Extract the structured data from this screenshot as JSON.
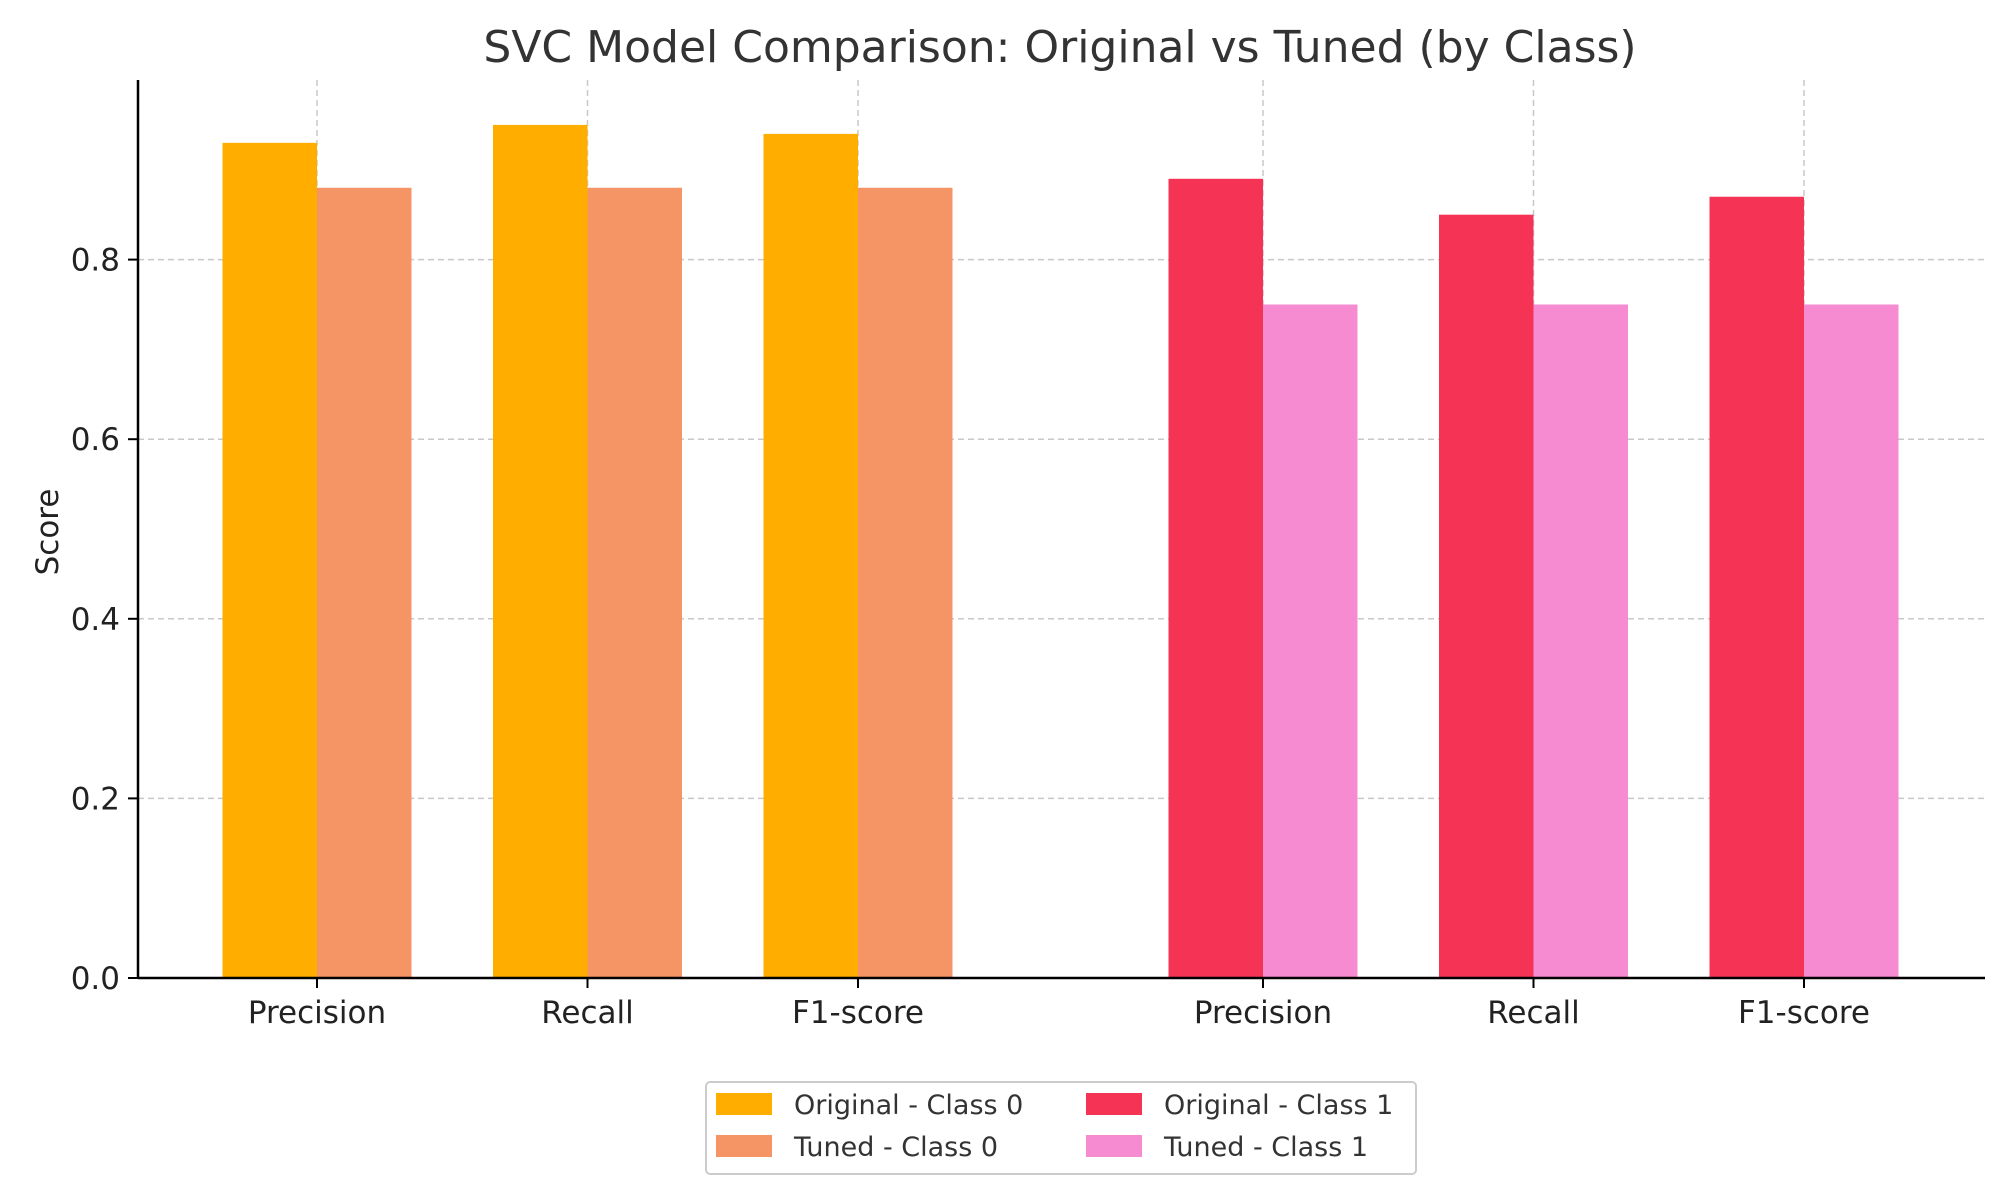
{
  "chart_data": {
    "type": "bar",
    "title": "SVC Model Comparison: Original vs Tuned (by Class)",
    "xlabel": "",
    "ylabel": "Score",
    "ylim": [
      0,
      1.0
    ],
    "yticks": [
      "0.0",
      "0.2",
      "0.4",
      "0.6",
      "0.8"
    ],
    "grid": true,
    "legend_position": "bottom-center",
    "groups": [
      {
        "categories": [
          "Precision",
          "Recall",
          "F1-score"
        ],
        "series": [
          {
            "name": "Original - Class 0",
            "color": "#FFAE00",
            "values": [
              0.93,
              0.95,
              0.94
            ]
          },
          {
            "name": "Tuned - Class 0",
            "color": "#F59565",
            "values": [
              0.88,
              0.88,
              0.88
            ]
          }
        ]
      },
      {
        "categories": [
          "Precision",
          "Recall",
          "F1-score"
        ],
        "series": [
          {
            "name": "Original - Class 1",
            "color": "#F53354",
            "values": [
              0.89,
              0.85,
              0.87
            ]
          },
          {
            "name": "Tuned - Class 1",
            "color": "#F78BD1",
            "values": [
              0.75,
              0.75,
              0.75
            ]
          }
        ]
      }
    ],
    "legend": [
      {
        "label": "Original - Class 0",
        "color": "#FFAE00"
      },
      {
        "label": "Tuned - Class 0",
        "color": "#F59565"
      },
      {
        "label": "Original - Class 1",
        "color": "#F53354"
      },
      {
        "label": "Tuned - Class 1",
        "color": "#F78BD1"
      }
    ]
  }
}
